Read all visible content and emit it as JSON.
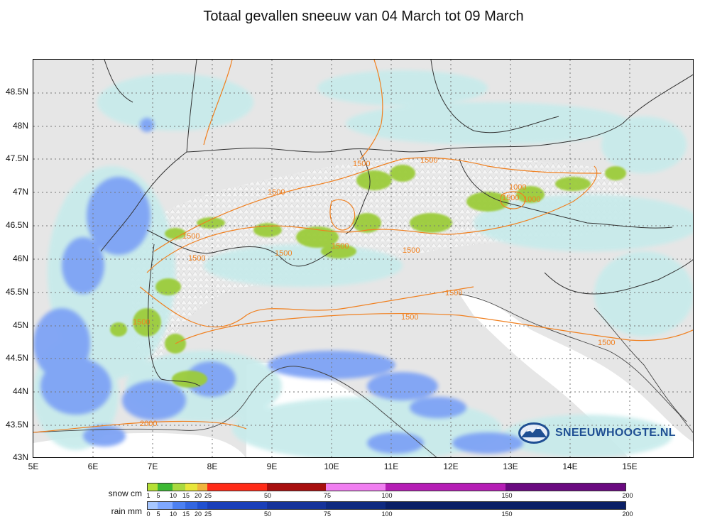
{
  "title": "Totaal gevallen sneeuw van 04 March tot 09 March",
  "lat_labels": [
    "48.5N",
    "48N",
    "47.5N",
    "47N",
    "46.5N",
    "46N",
    "45.5N",
    "45N",
    "44.5N",
    "44N",
    "43.5N",
    "43N"
  ],
  "lon_labels": [
    "5E",
    "6E",
    "7E",
    "8E",
    "9E",
    "10E",
    "11E",
    "12E",
    "13E",
    "14E",
    "15E"
  ],
  "contour_labels": [
    "1500",
    "1500",
    "1500",
    "1500",
    "1500",
    "1000",
    "1500",
    "1500",
    "1500",
    "1500",
    "1500",
    "1500",
    "1500",
    "1000",
    "1500",
    "2000"
  ],
  "legend": {
    "snow_title": "snow cm",
    "rain_title": "rain mm",
    "snow_ticks": [
      "1",
      "5",
      "10",
      "15",
      "20",
      "25",
      "50",
      "75",
      "100",
      "150",
      "200"
    ],
    "rain_ticks": [
      "0",
      "5",
      "10",
      "15",
      "20",
      "25",
      "50",
      "75",
      "100",
      "150",
      "200"
    ],
    "snow_colors": [
      "#b5e035",
      "#3db833",
      "#a9d93f",
      "#e8e63a",
      "#f0b43c",
      "#ff2a17",
      "#a80f0f",
      "#f07ef0",
      "#b51eb5",
      "#6a0a80"
    ],
    "rain_colors": [
      "#a7c7ff",
      "#7fa8ff",
      "#4d80f0",
      "#3366e0",
      "#2050d0",
      "#1a3fb8",
      "#16339a",
      "#0f2a80",
      "#0a1f66"
    ]
  },
  "brand": {
    "name": "SNEEUWHOOGTE.NL",
    "icon": "mountain-logo-icon"
  },
  "colors": {
    "land": "#e6e6e6",
    "sea": "#ffffff",
    "rain_light": "#c6ebeb",
    "rain_mid": "#7ea3f5",
    "snow_green": "#9ccc3a",
    "contour": "#f08020",
    "border": "#333333"
  }
}
